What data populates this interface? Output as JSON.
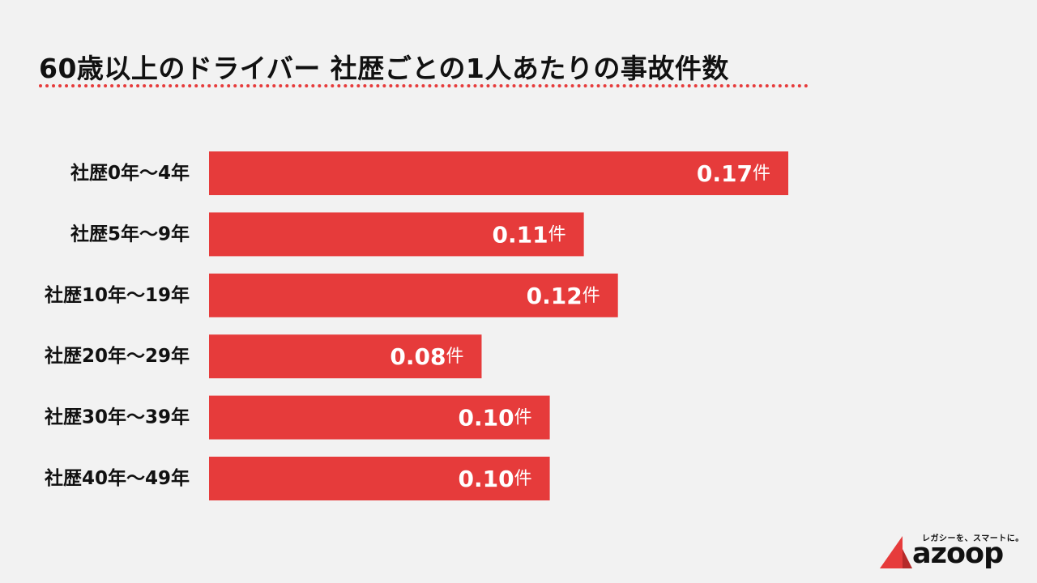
{
  "title": "60歳以上のドライバー 社歴ごとの1人あたりの事故件数",
  "chart_data": {
    "type": "bar",
    "orientation": "horizontal",
    "categories": [
      "社歴0年〜4年",
      "社歴5年〜9年",
      "社歴10年〜19年",
      "社歴20年〜29年",
      "社歴30年〜39年",
      "社歴40年〜49年"
    ],
    "values": [
      0.17,
      0.11,
      0.12,
      0.08,
      0.1,
      0.1
    ],
    "value_labels": [
      "0.17",
      "0.11",
      "0.12",
      "0.08",
      "0.10",
      "0.10"
    ],
    "unit": "件",
    "xlim": [
      0,
      0.17
    ],
    "grid": false,
    "bar_color": "#e63b3b"
  },
  "logo": {
    "tagline": "レガシーを、スマートに。",
    "wordmark": "azoop",
    "accent_color": "#e63b3b"
  }
}
